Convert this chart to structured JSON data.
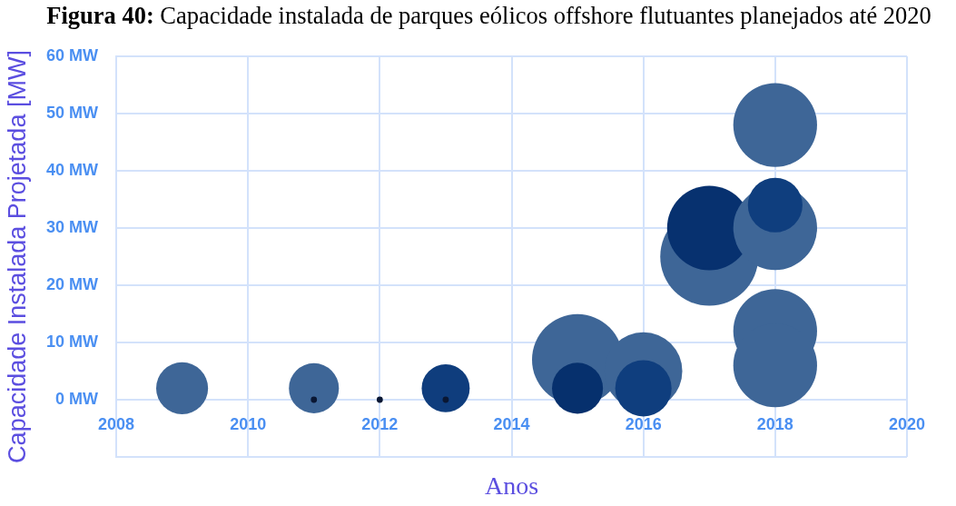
{
  "chart_data": {
    "type": "bubble",
    "title": "Figura 40: Capacidade instalada de parques eólicos offshore flutuantes planejados até 2020",
    "xlabel": "Anos",
    "ylabel": "Capacidade Instalada Projetada [MW]",
    "series": [
      {
        "type": "bubble",
        "x": [
          2009,
          2011,
          2013,
          2015,
          2016,
          2015,
          2016,
          2017,
          2017,
          2018,
          2018,
          2018,
          2018,
          2018
        ],
        "values": [
          2,
          2,
          2,
          7,
          5,
          2,
          2,
          25,
          30,
          48,
          30,
          34,
          12,
          6
        ],
        "sizes": [
          0.28,
          0.26,
          0.24,
          0.86,
          0.63,
          0.27,
          0.33,
          1,
          0.74,
          0.73,
          0.73,
          0.31,
          0.73,
          0.73
        ],
        "colors": [
          "#3e6697",
          "#3e6697",
          "#0f3d7d",
          "#3e6697",
          "#3e6697",
          "#06306d",
          "#0f3e7e",
          "#3e6697",
          "#07316f",
          "#3e6697",
          "#3e6697",
          "#0f3e7e",
          "#3e6697",
          "#3e6697"
        ]
      },
      {
        "type": "scatter",
        "x": [
          2011,
          2012,
          2013
        ],
        "values": [
          0,
          0,
          0
        ],
        "color": "#0a1733",
        "marker": "circle"
      }
    ],
    "xlim": [
      2008,
      2020
    ],
    "xticks": [
      2008,
      2010,
      2012,
      2014,
      2016,
      2018,
      2020
    ],
    "ylim": [
      -10,
      60
    ],
    "yticks": [
      {
        "value": -10,
        "label": null
      },
      {
        "value": 0,
        "label": "0 MW"
      },
      {
        "value": 10,
        "label": "10 MW"
      },
      {
        "value": 20,
        "label": "20 MW"
      },
      {
        "value": 30,
        "label": "30 MW"
      },
      {
        "value": 40,
        "label": "40 MW"
      },
      {
        "value": 50,
        "label": "50 MW"
      },
      {
        "value": 60,
        "label": "60 MW"
      }
    ],
    "grid": true
  }
}
